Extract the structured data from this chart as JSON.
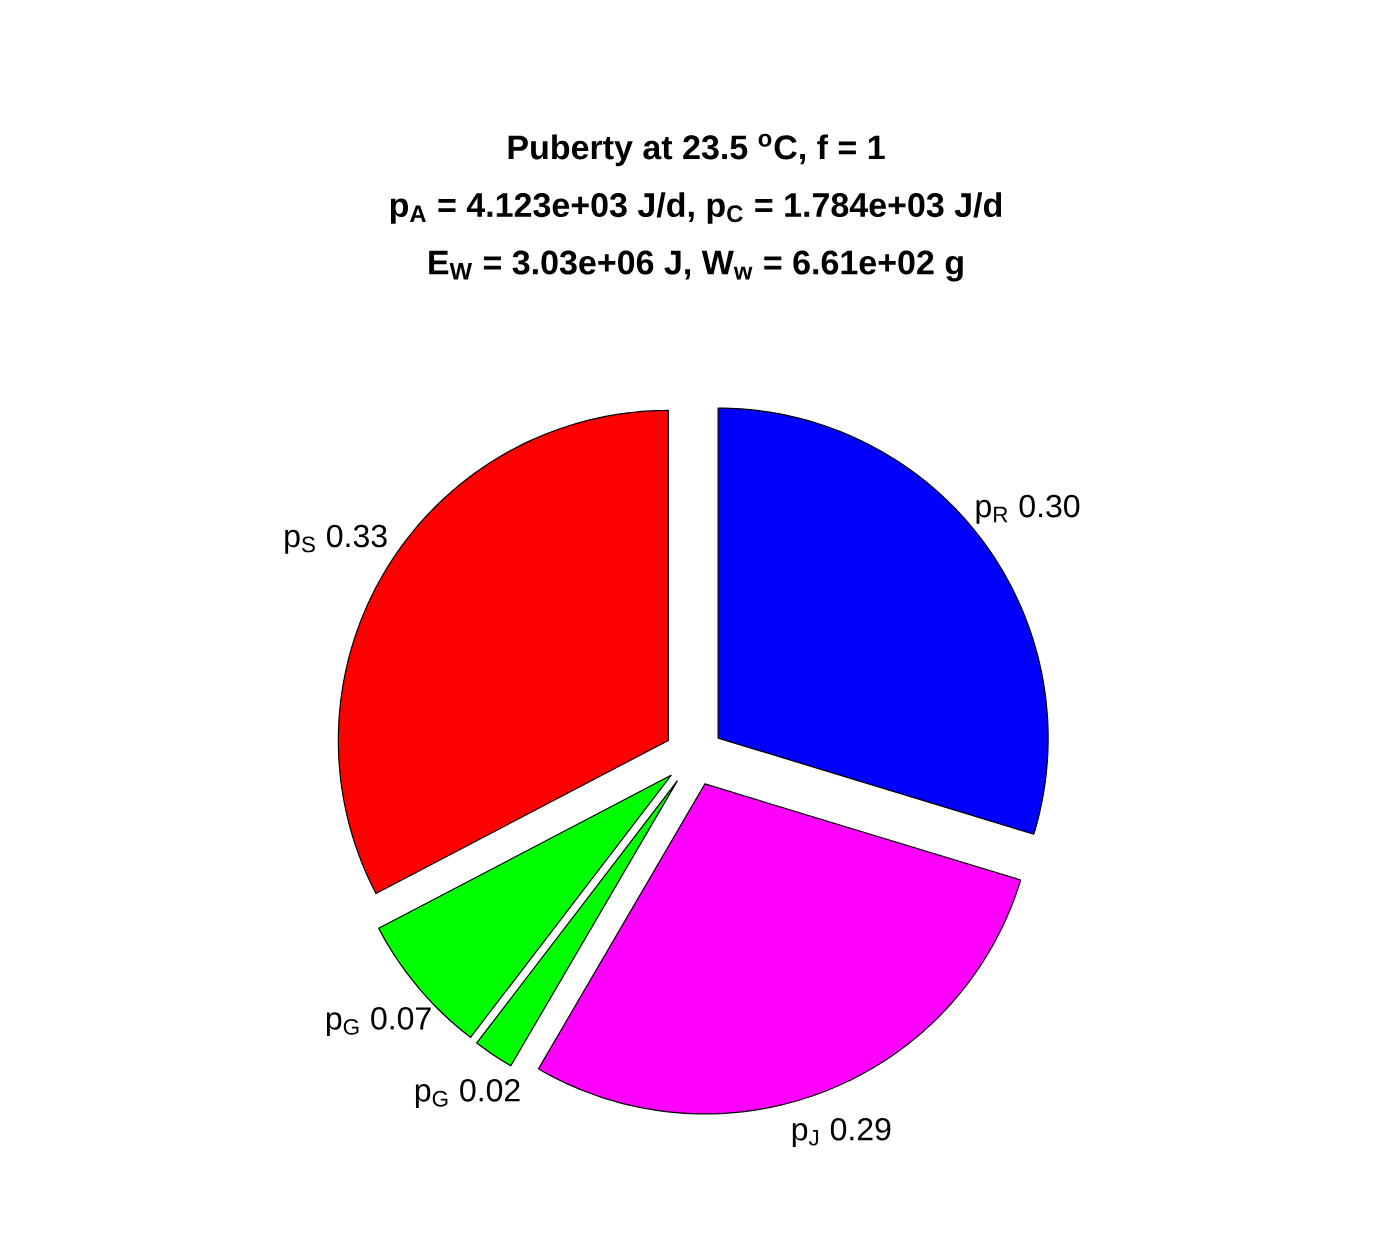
{
  "chart_data": {
    "type": "pie",
    "title": "Puberty at 23.5 $^{o}$C, f = 1",
    "subtitle": "p$_{A}$ = 4.123e+03 J/d,  p$_{C}$ = 1.784e+03 J/d",
    "annotations": [
      "E$_{W}$ = 3.03e+06 J, W$_{w}$ = 6.61e+02 g"
    ],
    "categories": [
      "p$_{R}$",
      "p$_{J}$",
      "p$_{G}$",
      "p$_{G}$",
      "p$_{S}$"
    ],
    "values": [
      0.3,
      0.29,
      0.02,
      0.07,
      0.33
    ],
    "value_labels": [
      "0.30",
      "0.29",
      "0.02",
      "0.07",
      "0.33"
    ],
    "colors": [
      "#0000ff",
      "#ff00ff",
      "#00ff00",
      "#00ff00",
      "#ff0000"
    ]
  }
}
